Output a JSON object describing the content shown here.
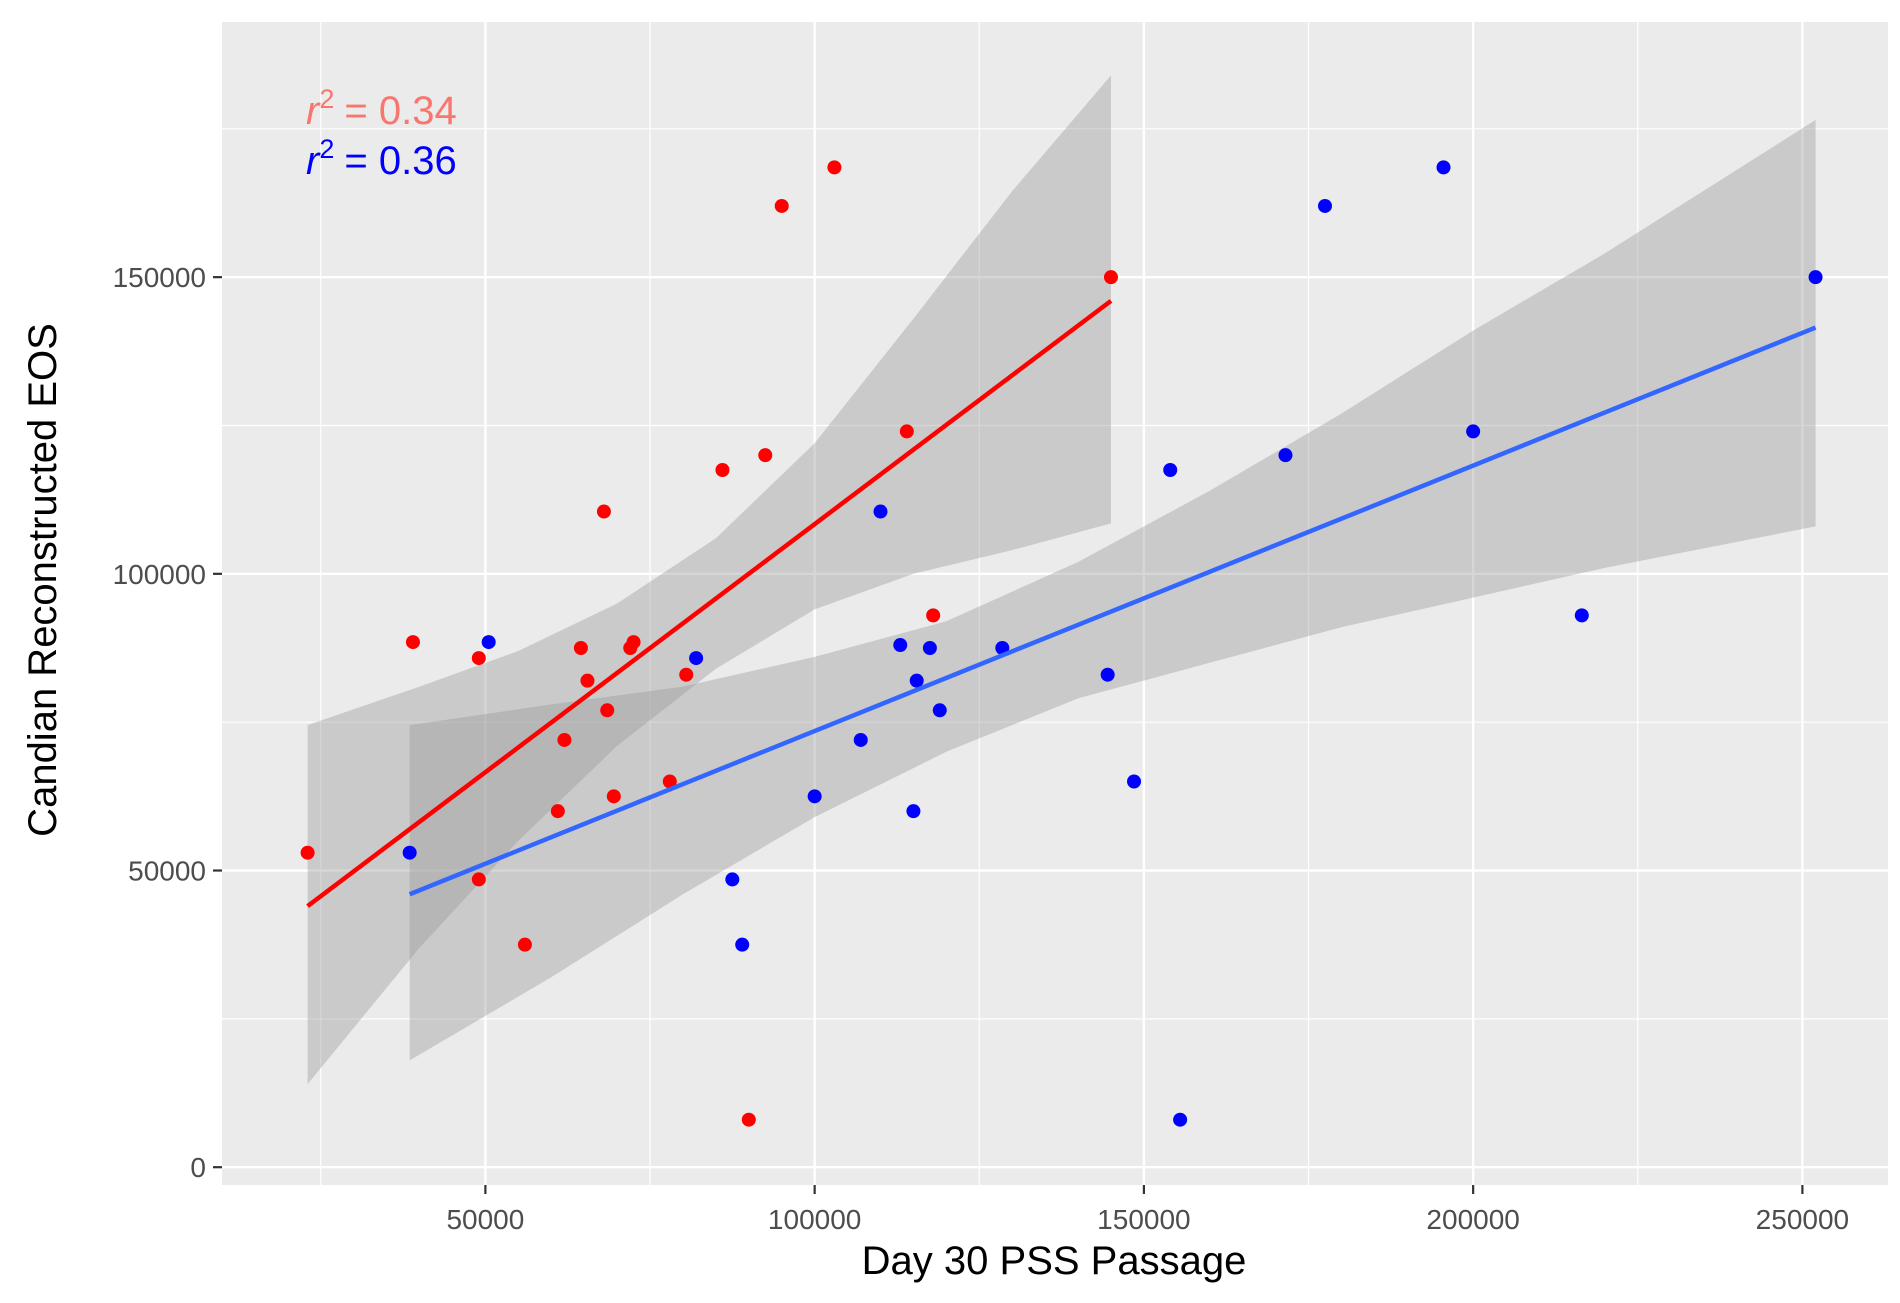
{
  "chart_data": {
    "type": "scatter",
    "xlabel": "Day 30 PSS Passage",
    "ylabel": "Candian Reconstructed EOS",
    "xlim": [
      10000,
      263000
    ],
    "ylim": [
      -3000,
      193000
    ],
    "x_ticks": [
      50000,
      100000,
      150000,
      200000,
      250000
    ],
    "x_tick_labels": [
      "50000",
      "100000",
      "150000",
      "200000",
      "250000"
    ],
    "y_ticks": [
      0,
      50000,
      100000,
      150000
    ],
    "y_tick_labels": [
      "0",
      "50000",
      "100000",
      "150000"
    ],
    "grid": true,
    "background": "#ebebeb",
    "band_color": "#999999",
    "series": [
      {
        "color": "#ff0000",
        "line_color": "#ff0000",
        "r2_text": "= 0.34",
        "r2_color": "#f8766d",
        "points": [
          {
            "x": 23000,
            "y": 53000
          },
          {
            "x": 39000,
            "y": 88500
          },
          {
            "x": 49000,
            "y": 85800
          },
          {
            "x": 49000,
            "y": 48500
          },
          {
            "x": 56000,
            "y": 37500
          },
          {
            "x": 61000,
            "y": 60000
          },
          {
            "x": 62000,
            "y": 72000
          },
          {
            "x": 64500,
            "y": 87500
          },
          {
            "x": 65500,
            "y": 82000
          },
          {
            "x": 68000,
            "y": 110500
          },
          {
            "x": 68500,
            "y": 77000
          },
          {
            "x": 69500,
            "y": 62500
          },
          {
            "x": 72000,
            "y": 87500
          },
          {
            "x": 72500,
            "y": 88500
          },
          {
            "x": 78000,
            "y": 65000
          },
          {
            "x": 80500,
            "y": 83000
          },
          {
            "x": 86000,
            "y": 117500
          },
          {
            "x": 90000,
            "y": 8000
          },
          {
            "x": 92500,
            "y": 120000
          },
          {
            "x": 95000,
            "y": 162000
          },
          {
            "x": 103000,
            "y": 168500
          },
          {
            "x": 114000,
            "y": 124000
          },
          {
            "x": 118000,
            "y": 93000
          },
          {
            "x": 145000,
            "y": 150000
          }
        ],
        "fit": {
          "x": [
            23000,
            145000
          ],
          "y": [
            44000,
            146000
          ]
        },
        "ci": {
          "x": [
            23000,
            40000,
            55000,
            70000,
            85000,
            100000,
            115000,
            130000,
            145000
          ],
          "lower": [
            14000,
            37000,
            55000,
            71000,
            84000,
            94000,
            100000,
            104000,
            108500
          ],
          "upper": [
            74500,
            81000,
            87000,
            95000,
            106000,
            122000,
            143000,
            164500,
            184000
          ]
        }
      },
      {
        "color": "#0000ff",
        "line_color": "#3366ff",
        "r2_text": "= 0.36",
        "r2_color": "#0000ff",
        "points": [
          {
            "x": 38500,
            "y": 53000
          },
          {
            "x": 50500,
            "y": 88500
          },
          {
            "x": 82000,
            "y": 85800
          },
          {
            "x": 87500,
            "y": 48500
          },
          {
            "x": 89000,
            "y": 37500
          },
          {
            "x": 100000,
            "y": 62500
          },
          {
            "x": 107000,
            "y": 72000
          },
          {
            "x": 110000,
            "y": 110500
          },
          {
            "x": 113000,
            "y": 88000
          },
          {
            "x": 115000,
            "y": 60000
          },
          {
            "x": 115500,
            "y": 82000
          },
          {
            "x": 117500,
            "y": 87500
          },
          {
            "x": 119000,
            "y": 77000
          },
          {
            "x": 128500,
            "y": 87500
          },
          {
            "x": 144500,
            "y": 83000
          },
          {
            "x": 148500,
            "y": 65000
          },
          {
            "x": 154000,
            "y": 117500
          },
          {
            "x": 155500,
            "y": 8000
          },
          {
            "x": 171500,
            "y": 120000
          },
          {
            "x": 177500,
            "y": 162000
          },
          {
            "x": 195500,
            "y": 168500
          },
          {
            "x": 200000,
            "y": 124000
          },
          {
            "x": 216500,
            "y": 93000
          },
          {
            "x": 252000,
            "y": 150000
          }
        ],
        "fit": {
          "x": [
            38500,
            252000
          ],
          "y": [
            46000,
            141500
          ]
        },
        "ci": {
          "x": [
            38500,
            60000,
            80000,
            100000,
            120000,
            140000,
            160000,
            180000,
            200000,
            220000,
            252000
          ],
          "lower": [
            18000,
            32000,
            46000,
            59000,
            70000,
            79000,
            85000,
            91000,
            96000,
            101000,
            108000
          ],
          "upper": [
            74500,
            78000,
            81000,
            86000,
            92000,
            102000,
            114000,
            127000,
            141000,
            154000,
            176500
          ]
        }
      }
    ],
    "annotation": {
      "r_letter": "r",
      "superscript": "2"
    }
  }
}
